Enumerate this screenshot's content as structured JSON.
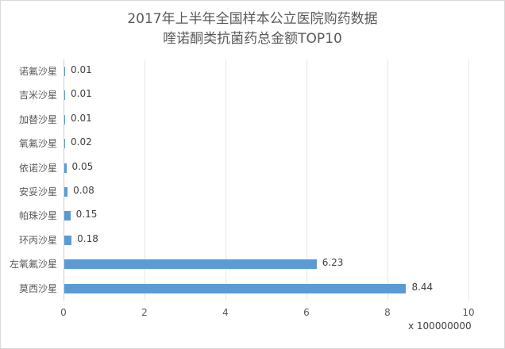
{
  "chart": {
    "title_line1": "2017年上半年全国样本公立医院购药数据",
    "title_line2": "喹诺酮类抗菌药总金额TOP10",
    "unit_label": "x 100000000",
    "bar_color": "#5b9bd5",
    "x_ticks": [
      "0",
      "2",
      "4",
      "6",
      "8",
      "10"
    ],
    "rows": [
      {
        "label": "诺氟沙星",
        "value": "0.01"
      },
      {
        "label": "吉米沙星",
        "value": "0.01"
      },
      {
        "label": "加替沙星",
        "value": "0.01"
      },
      {
        "label": "氧氟沙星",
        "value": "0.02"
      },
      {
        "label": "依诺沙星",
        "value": "0.05"
      },
      {
        "label": "安妥沙星",
        "value": "0.08"
      },
      {
        "label": "帕珠沙星",
        "value": "0.15"
      },
      {
        "label": "环丙沙星",
        "value": "0.18"
      },
      {
        "label": "左氧氟沙星",
        "value": "6.23"
      },
      {
        "label": "莫西沙星",
        "value": "8.44"
      }
    ]
  },
  "chart_data": {
    "type": "bar",
    "orientation": "horizontal",
    "title": "2017年上半年全国样本公立医院购药数据 喹诺酮类抗菌药总金额TOP10",
    "categories": [
      "诺氟沙星",
      "吉米沙星",
      "加替沙星",
      "氧氟沙星",
      "依诺沙星",
      "安妥沙星",
      "帕珠沙星",
      "环丙沙星",
      "左氧氟沙星",
      "莫西沙星"
    ],
    "values": [
      0.01,
      0.01,
      0.01,
      0.02,
      0.05,
      0.08,
      0.15,
      0.18,
      6.23,
      8.44
    ],
    "xlabel": "x 100000000",
    "ylabel": "",
    "xlim": [
      0,
      10
    ],
    "x_ticks": [
      0,
      2,
      4,
      6,
      8,
      10
    ],
    "grid": true,
    "legend": null,
    "data_labels": true
  }
}
